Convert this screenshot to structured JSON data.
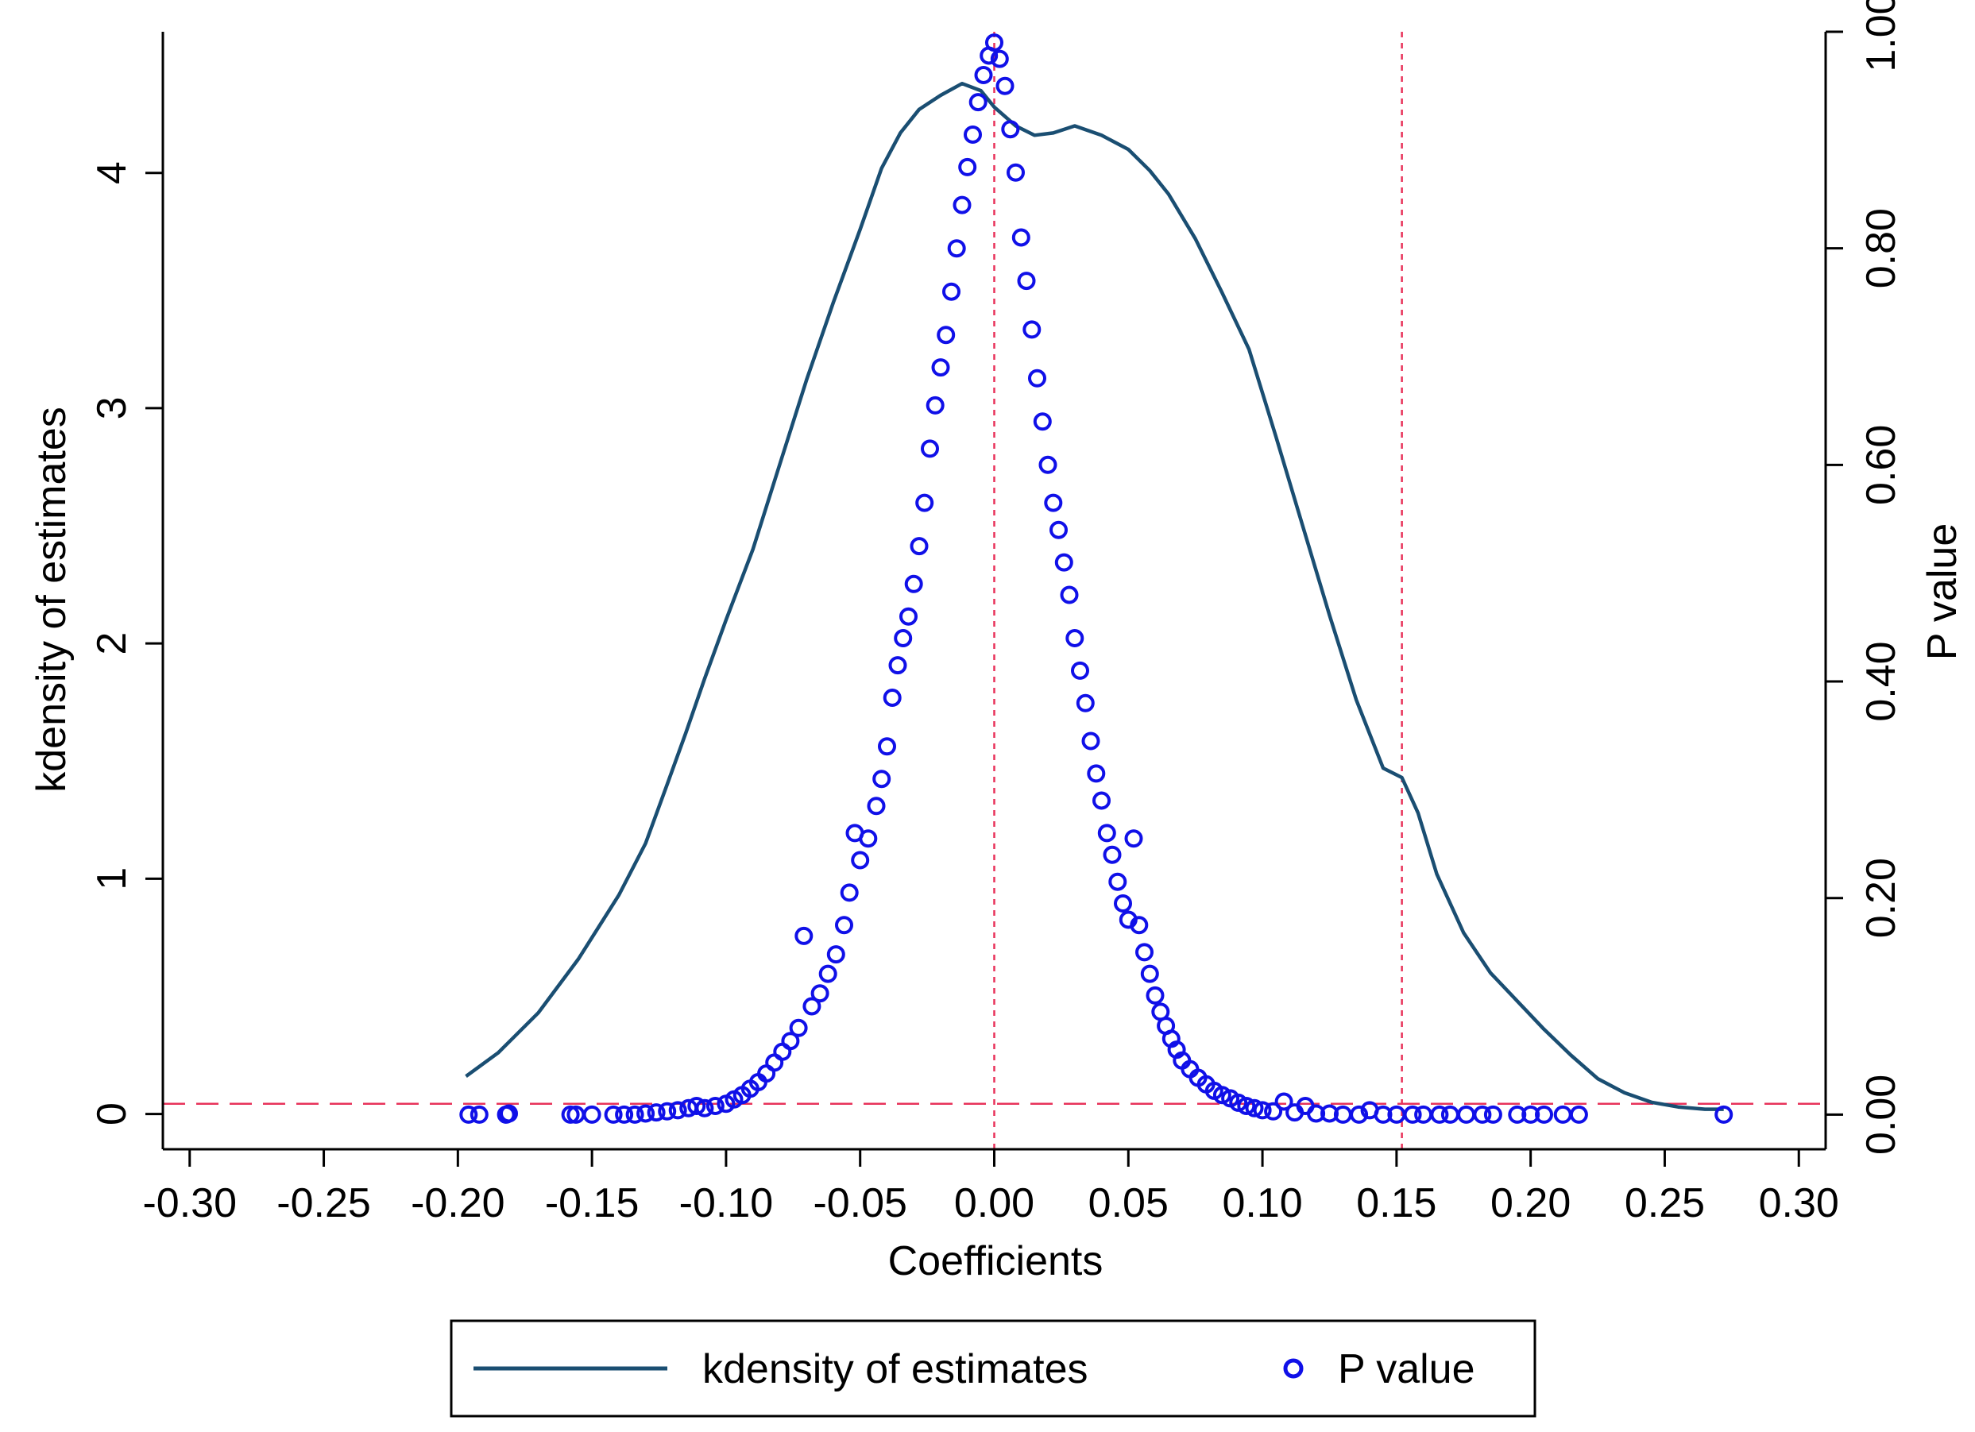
{
  "chart_data": {
    "type": "line",
    "title": "",
    "xlabel": "Coefficients",
    "ylabel": "kdensity of estimates",
    "y2label": "P value",
    "xlim": [
      -0.31,
      0.31
    ],
    "ylim": [
      -0.15,
      4.6
    ],
    "y2lim": [
      -0.032,
      1.0
    ],
    "x_ticks": [
      -0.3,
      -0.25,
      -0.2,
      -0.15,
      -0.1,
      -0.05,
      0.0,
      0.05,
      0.1,
      0.15,
      0.2,
      0.25,
      0.3
    ],
    "x_tick_labels": [
      "-0.30",
      "-0.25",
      "-0.20",
      "-0.15",
      "-0.10",
      "-0.05",
      "0.00",
      "0.05",
      "0.10",
      "0.15",
      "0.20",
      "0.25",
      "0.30"
    ],
    "y_ticks": [
      0,
      1,
      2,
      3,
      4
    ],
    "y_tick_labels": [
      "0",
      "1",
      "2",
      "3",
      "4"
    ],
    "y2_ticks": [
      0.0,
      0.2,
      0.4,
      0.6,
      0.8,
      1.0
    ],
    "y2_tick_labels": [
      "0.00",
      "0.20",
      "0.40",
      "0.60",
      "0.80",
      "1.00"
    ],
    "reference_lines": {
      "vertical_x": [
        0.0,
        0.152
      ],
      "horizontal_pvalue": 0.01,
      "color": "#e8325a"
    },
    "legend": {
      "position": "bottom",
      "entries": [
        {
          "label": "kdensity of estimates",
          "symbol": "line",
          "color": "#1a4e72"
        },
        {
          "label": "P value",
          "symbol": "circle",
          "color": "#1010e8"
        }
      ]
    },
    "series": [
      {
        "name": "kdensity of estimates",
        "type": "line",
        "axis": "left",
        "color": "#1a4e72",
        "points": [
          [
            -0.197,
            0.16
          ],
          [
            -0.185,
            0.26
          ],
          [
            -0.17,
            0.43
          ],
          [
            -0.155,
            0.66
          ],
          [
            -0.14,
            0.93
          ],
          [
            -0.13,
            1.15
          ],
          [
            -0.122,
            1.4
          ],
          [
            -0.115,
            1.62
          ],
          [
            -0.108,
            1.85
          ],
          [
            -0.1,
            2.1
          ],
          [
            -0.09,
            2.4
          ],
          [
            -0.08,
            2.76
          ],
          [
            -0.07,
            3.12
          ],
          [
            -0.06,
            3.45
          ],
          [
            -0.05,
            3.76
          ],
          [
            -0.042,
            4.02
          ],
          [
            -0.035,
            4.17
          ],
          [
            -0.028,
            4.27
          ],
          [
            -0.02,
            4.33
          ],
          [
            -0.012,
            4.38
          ],
          [
            -0.005,
            4.35
          ],
          [
            0.0,
            4.28
          ],
          [
            0.008,
            4.2
          ],
          [
            0.015,
            4.16
          ],
          [
            0.022,
            4.17
          ],
          [
            0.03,
            4.2
          ],
          [
            0.04,
            4.16
          ],
          [
            0.05,
            4.1
          ],
          [
            0.058,
            4.01
          ],
          [
            0.065,
            3.91
          ],
          [
            0.075,
            3.72
          ],
          [
            0.085,
            3.49
          ],
          [
            0.095,
            3.25
          ],
          [
            0.105,
            2.88
          ],
          [
            0.115,
            2.5
          ],
          [
            0.125,
            2.12
          ],
          [
            0.135,
            1.76
          ],
          [
            0.145,
            1.47
          ],
          [
            0.152,
            1.43
          ],
          [
            0.158,
            1.28
          ],
          [
            0.165,
            1.02
          ],
          [
            0.175,
            0.77
          ],
          [
            0.185,
            0.6
          ],
          [
            0.195,
            0.48
          ],
          [
            0.205,
            0.36
          ],
          [
            0.215,
            0.25
          ],
          [
            0.225,
            0.15
          ],
          [
            0.235,
            0.09
          ],
          [
            0.245,
            0.05
          ],
          [
            0.255,
            0.03
          ],
          [
            0.265,
            0.02
          ],
          [
            0.272,
            0.02
          ]
        ]
      },
      {
        "name": "P value",
        "type": "scatter",
        "axis": "right",
        "color": "#1010e8",
        "points": [
          [
            -0.196,
            0.0
          ],
          [
            -0.192,
            0.0
          ],
          [
            -0.182,
            0.0
          ],
          [
            -0.181,
            0.001
          ],
          [
            -0.158,
            0.0
          ],
          [
            -0.156,
            0.0
          ],
          [
            -0.15,
            0.0
          ],
          [
            -0.142,
            0.0
          ],
          [
            -0.138,
            0.0
          ],
          [
            -0.134,
            0.0
          ],
          [
            -0.13,
            0.001
          ],
          [
            -0.126,
            0.002
          ],
          [
            -0.122,
            0.003
          ],
          [
            -0.118,
            0.004
          ],
          [
            -0.114,
            0.006
          ],
          [
            -0.111,
            0.008
          ],
          [
            -0.108,
            0.006
          ],
          [
            -0.104,
            0.008
          ],
          [
            -0.1,
            0.01
          ],
          [
            -0.097,
            0.014
          ],
          [
            -0.094,
            0.018
          ],
          [
            -0.091,
            0.024
          ],
          [
            -0.088,
            0.03
          ],
          [
            -0.085,
            0.038
          ],
          [
            -0.082,
            0.048
          ],
          [
            -0.079,
            0.058
          ],
          [
            -0.076,
            0.068
          ],
          [
            -0.073,
            0.08
          ],
          [
            -0.071,
            0.165
          ],
          [
            -0.068,
            0.1
          ],
          [
            -0.065,
            0.112
          ],
          [
            -0.062,
            0.13
          ],
          [
            -0.059,
            0.148
          ],
          [
            -0.056,
            0.175
          ],
          [
            -0.054,
            0.205
          ],
          [
            -0.052,
            0.26
          ],
          [
            -0.05,
            0.235
          ],
          [
            -0.047,
            0.255
          ],
          [
            -0.044,
            0.285
          ],
          [
            -0.042,
            0.31
          ],
          [
            -0.04,
            0.34
          ],
          [
            -0.038,
            0.385
          ],
          [
            -0.036,
            0.415
          ],
          [
            -0.034,
            0.44
          ],
          [
            -0.032,
            0.46
          ],
          [
            -0.03,
            0.49
          ],
          [
            -0.028,
            0.525
          ],
          [
            -0.026,
            0.565
          ],
          [
            -0.024,
            0.615
          ],
          [
            -0.022,
            0.655
          ],
          [
            -0.02,
            0.69
          ],
          [
            -0.018,
            0.72
          ],
          [
            -0.016,
            0.76
          ],
          [
            -0.014,
            0.8
          ],
          [
            -0.012,
            0.84
          ],
          [
            -0.01,
            0.875
          ],
          [
            -0.008,
            0.905
          ],
          [
            -0.006,
            0.935
          ],
          [
            -0.004,
            0.96
          ],
          [
            -0.002,
            0.978
          ],
          [
            0.0,
            0.99
          ],
          [
            0.002,
            0.975
          ],
          [
            0.004,
            0.95
          ],
          [
            0.006,
            0.91
          ],
          [
            0.008,
            0.87
          ],
          [
            0.01,
            0.81
          ],
          [
            0.012,
            0.77
          ],
          [
            0.014,
            0.725
          ],
          [
            0.016,
            0.68
          ],
          [
            0.018,
            0.64
          ],
          [
            0.02,
            0.6
          ],
          [
            0.022,
            0.565
          ],
          [
            0.024,
            0.54
          ],
          [
            0.026,
            0.51
          ],
          [
            0.028,
            0.48
          ],
          [
            0.03,
            0.44
          ],
          [
            0.032,
            0.41
          ],
          [
            0.034,
            0.38
          ],
          [
            0.036,
            0.345
          ],
          [
            0.038,
            0.315
          ],
          [
            0.04,
            0.29
          ],
          [
            0.042,
            0.26
          ],
          [
            0.044,
            0.24
          ],
          [
            0.046,
            0.215
          ],
          [
            0.048,
            0.195
          ],
          [
            0.05,
            0.18
          ],
          [
            0.052,
            0.255
          ],
          [
            0.054,
            0.175
          ],
          [
            0.056,
            0.15
          ],
          [
            0.058,
            0.13
          ],
          [
            0.06,
            0.11
          ],
          [
            0.062,
            0.095
          ],
          [
            0.064,
            0.082
          ],
          [
            0.066,
            0.07
          ],
          [
            0.068,
            0.06
          ],
          [
            0.07,
            0.05
          ],
          [
            0.073,
            0.042
          ],
          [
            0.076,
            0.034
          ],
          [
            0.079,
            0.028
          ],
          [
            0.082,
            0.022
          ],
          [
            0.085,
            0.018
          ],
          [
            0.088,
            0.015
          ],
          [
            0.091,
            0.011
          ],
          [
            0.094,
            0.008
          ],
          [
            0.097,
            0.006
          ],
          [
            0.1,
            0.004
          ],
          [
            0.104,
            0.003
          ],
          [
            0.108,
            0.012
          ],
          [
            0.112,
            0.002
          ],
          [
            0.116,
            0.008
          ],
          [
            0.12,
            0.001
          ],
          [
            0.125,
            0.001
          ],
          [
            0.13,
            0.0
          ],
          [
            0.136,
            0.0
          ],
          [
            0.14,
            0.004
          ],
          [
            0.145,
            0.0
          ],
          [
            0.15,
            0.0
          ],
          [
            0.156,
            0.0
          ],
          [
            0.16,
            0.0
          ],
          [
            0.166,
            0.0
          ],
          [
            0.17,
            0.0
          ],
          [
            0.176,
            0.0
          ],
          [
            0.182,
            0.0
          ],
          [
            0.186,
            0.0
          ],
          [
            0.195,
            0.0
          ],
          [
            0.2,
            0.0
          ],
          [
            0.205,
            0.0
          ],
          [
            0.212,
            0.0
          ],
          [
            0.218,
            0.0
          ],
          [
            0.272,
            0.0
          ]
        ]
      }
    ]
  }
}
